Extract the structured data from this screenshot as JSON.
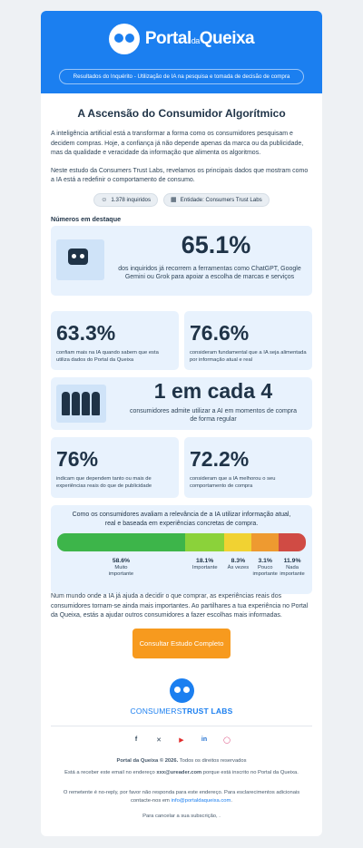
{
  "header": {
    "brand_main": "Portal",
    "brand_small": "da",
    "brand_end": "Queixa",
    "subtitle": "Resultados do Inquérito - Utilização de IA na pesquisa e tomada de decisão de compra"
  },
  "title": "A Ascensão do Consumidor Algorítmico",
  "intro": [
    "A inteligência artificial está a transformar a forma como os consumidores pesquisam e decidem compras. Hoje, a confiança já não depende apenas da marca ou da publicidade, mas da qualidade e veracidade da informação que alimenta os algoritmos.",
    "Neste estudo da Consumers Trust Labs, revelamos os principais dados que mostram como a IA está a redefinir o comportamento de consumo."
  ],
  "chips": {
    "respondents": "1.378 inquiridos",
    "entity": "Entidade: Consumers Trust Labs"
  },
  "highlights_title": "Números em destaque",
  "stats": {
    "s1": {
      "value": "65.1%",
      "text": "dos inquiridos já recorrem a ferramentas como ChatGPT, Google Gemini ou Grok para apoiar a escolha de marcas e serviços"
    },
    "s2": {
      "value": "63.3%",
      "text": "confiam mais na IA quando sabem que esta utiliza dados do Portal da Queixa"
    },
    "s3": {
      "value": "76.6%",
      "text": "consideram fundamental que a IA seja alimentada por informação atual e real"
    },
    "s4": {
      "value": "1 em cada 4",
      "text": "consumidores admite utilizar a AI em momentos de compra de forma regular"
    },
    "s5": {
      "value": "76%",
      "text": "indicam que dependem tanto ou mais de experiências reais do que de publicidade"
    },
    "s6": {
      "value": "72.2%",
      "text": "consideram que a IA melhorou o seu comportamento de compra"
    }
  },
  "bar_title": "Como os consumidores avaliam a relevância de a IA utilizar informação atual, real e baseada em experiências concretas de compra.",
  "segments": [
    {
      "pct": "58.6%",
      "value": 58.6,
      "label": "Muito importante",
      "color": "#3db54a"
    },
    {
      "pct": "18.1%",
      "value": 18.1,
      "label": "Importante",
      "color": "#8bd23a"
    },
    {
      "pct": "8.3%",
      "value": 8.3,
      "label": "Às vezes",
      "color": "#f1d232"
    },
    {
      "pct": "3.1%",
      "value": 3.1,
      "label": "Pouco importante",
      "color": "#ee9a30"
    },
    {
      "pct": "11.9%",
      "value": 11.9,
      "label": "Nada importante",
      "color": "#d04b44"
    }
  ],
  "closing": "Num mundo onde a IA já ajuda a decidir o que comprar, as experiências reais dos consumidores tornam-se ainda mais importantes. Ao partilhares a tua experiência no Portal da Queixa, estás a ajudar outros consumidores a fazer escolhas mais informadas.",
  "cta": "Consultar Estudo Completo",
  "footer": {
    "brand_a": "CONSUMERS",
    "brand_b": "TRUST LABS",
    "copyright_bold": "Portal da Queixa © 2026.",
    "copyright_rest": " Todos os direitos reservados",
    "email_pre": "Está a receber este email no endereço ",
    "email": "xxx@ureader.com",
    "email_post": " porque está inscrito no Portal da Queixa.",
    "noreply": "O remetente é no-reply, por favor não responda para este endereço. Para esclarecimentos adicionais contacte-nos em ",
    "contact": "info@portaldaqueixa.com",
    "contact_end": ".",
    "unsubscribe": "Para cancelar a sua subscrição, ."
  },
  "social_icons": [
    "facebook-icon",
    "x-icon",
    "youtube-icon",
    "linkedin-icon",
    "instagram-icon"
  ]
}
